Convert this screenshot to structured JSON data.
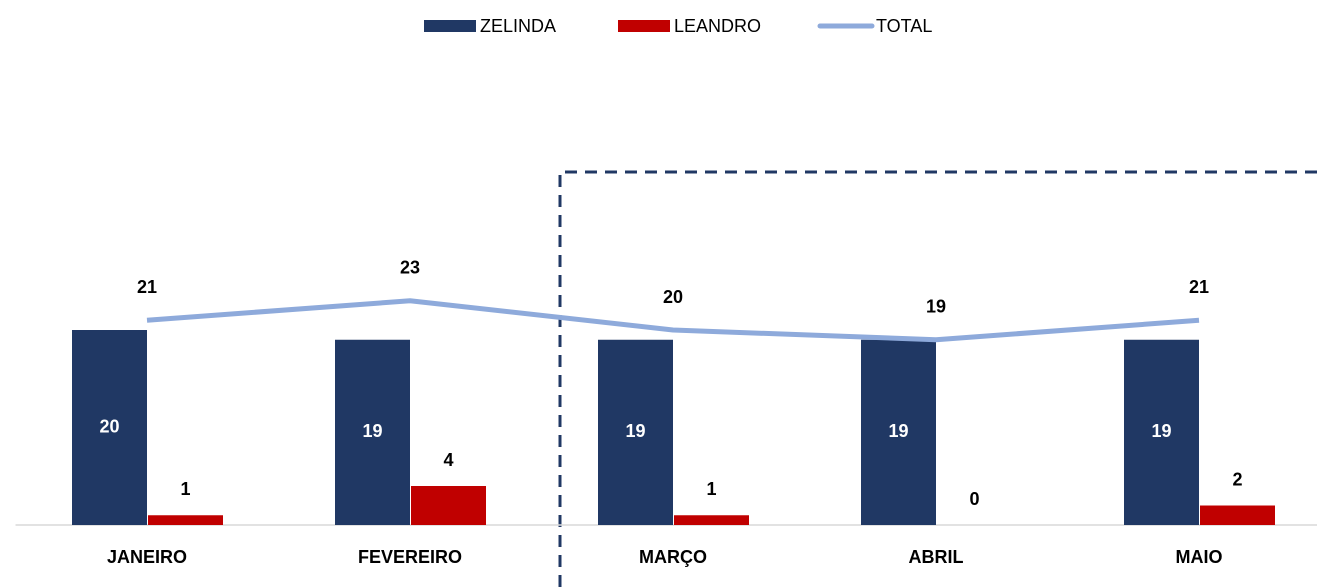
{
  "chart_data": {
    "type": "bar",
    "categories": [
      "JANEIRO",
      "FEVEREIRO",
      "MARÇO",
      "ABRIL",
      "MAIO"
    ],
    "series": [
      {
        "name": "ZELINDA",
        "type": "bar",
        "color": "#203864",
        "values": [
          20,
          19,
          19,
          19,
          19
        ]
      },
      {
        "name": "LEANDRO",
        "type": "bar",
        "color": "#c00000",
        "values": [
          1,
          4,
          1,
          0,
          2
        ]
      },
      {
        "name": "TOTAL",
        "type": "line",
        "color": "#8eaadb",
        "values": [
          21,
          23,
          20,
          19,
          21
        ]
      }
    ],
    "ylim": [
      0,
      40
    ],
    "legend": "top"
  }
}
